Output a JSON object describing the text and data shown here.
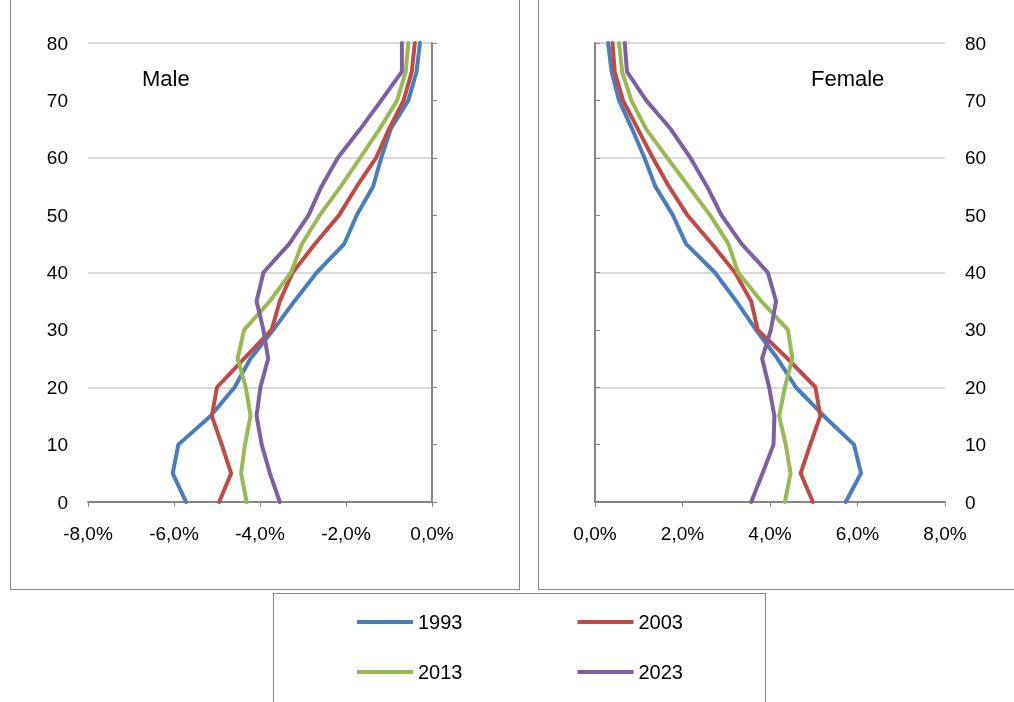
{
  "chart_data": [
    {
      "type": "line",
      "title": "Male",
      "xlim": [
        -8,
        0
      ],
      "xticks": [
        {
          "value": -8,
          "label": "-8,0%"
        },
        {
          "value": -6,
          "label": "-6,0%"
        },
        {
          "value": -4,
          "label": "-4,0%"
        },
        {
          "value": -2,
          "label": "-2,0%"
        },
        {
          "value": 0,
          "label": "0,0%"
        }
      ],
      "ylim": [
        0,
        80
      ],
      "yticks": [
        0,
        10,
        20,
        30,
        40,
        50,
        60,
        70,
        80
      ],
      "grid": "y",
      "marker": "none",
      "line_style": "solid",
      "legend": "bottom",
      "series": [
        {
          "name": "1993",
          "color": "#4a7ebb",
          "x": [
            -5.72,
            -6.03,
            -5.9,
            -5.15,
            -4.59,
            -4.22,
            -3.69,
            -3.2,
            -2.68,
            -2.04,
            -1.75,
            -1.37,
            -1.18,
            -0.96,
            -0.55,
            -0.36,
            -0.28
          ],
          "values": [
            0,
            5,
            10,
            15,
            20,
            25,
            30,
            35,
            40,
            45,
            50,
            55,
            60,
            65,
            70,
            75,
            80
          ]
        },
        {
          "name": "2003",
          "color": "#be4b48",
          "x": [
            -4.95,
            -4.67,
            -4.89,
            -5.12,
            -5.0,
            -4.37,
            -3.73,
            -3.54,
            -3.24,
            -2.72,
            -2.16,
            -1.75,
            -1.3,
            -1.0,
            -0.66,
            -0.47,
            -0.4
          ],
          "values": [
            0,
            5,
            10,
            15,
            20,
            25,
            30,
            35,
            40,
            45,
            50,
            55,
            60,
            65,
            70,
            75,
            80
          ]
        },
        {
          "name": "2013",
          "color": "#98b954",
          "x": [
            -4.31,
            -4.44,
            -4.35,
            -4.22,
            -4.33,
            -4.52,
            -4.37,
            -3.77,
            -3.28,
            -3.02,
            -2.61,
            -2.12,
            -1.67,
            -1.22,
            -0.81,
            -0.61,
            -0.55
          ],
          "values": [
            0,
            5,
            10,
            15,
            20,
            25,
            30,
            35,
            40,
            45,
            50,
            55,
            60,
            65,
            70,
            75,
            80
          ]
        },
        {
          "name": "2023",
          "color": "#7d60a0",
          "x": [
            -3.54,
            -3.77,
            -3.96,
            -4.08,
            -3.99,
            -3.81,
            -3.92,
            -4.08,
            -3.92,
            -3.32,
            -2.87,
            -2.57,
            -2.19,
            -1.67,
            -1.18,
            -0.7,
            -0.7
          ],
          "values": [
            0,
            5,
            10,
            15,
            20,
            25,
            30,
            35,
            40,
            45,
            50,
            55,
            60,
            65,
            70,
            75,
            80
          ]
        }
      ]
    },
    {
      "type": "line",
      "title": "Female",
      "xlim": [
        0,
        8
      ],
      "xticks": [
        {
          "value": 0,
          "label": "0,0%"
        },
        {
          "value": 2,
          "label": "2,0%"
        },
        {
          "value": 4,
          "label": "4,0%"
        },
        {
          "value": 6,
          "label": "6,0%"
        },
        {
          "value": 8,
          "label": "8,0%"
        }
      ],
      "ylim": [
        0,
        80
      ],
      "yticks": [
        0,
        10,
        20,
        30,
        40,
        50,
        60,
        70,
        80
      ],
      "grid": "y",
      "marker": "none",
      "line_style": "solid",
      "series": [
        {
          "color": "#4a7ebb",
          "x": [
            5.73,
            6.08,
            5.92,
            5.23,
            4.59,
            4.17,
            3.68,
            3.23,
            2.74,
            2.08,
            1.78,
            1.38,
            1.13,
            0.85,
            0.55,
            0.38,
            0.3
          ],
          "values": [
            0,
            5,
            10,
            15,
            20,
            25,
            30,
            35,
            40,
            45,
            50,
            55,
            60,
            65,
            70,
            75,
            80
          ]
        },
        {
          "color": "#be4b48",
          "x": [
            4.98,
            4.7,
            4.92,
            5.15,
            5.04,
            4.4,
            3.72,
            3.57,
            3.2,
            2.67,
            2.11,
            1.69,
            1.32,
            0.98,
            0.64,
            0.45,
            0.4
          ],
          "values": [
            0,
            5,
            10,
            15,
            20,
            25,
            30,
            35,
            40,
            45,
            50,
            55,
            60,
            65,
            70,
            75,
            80
          ]
        },
        {
          "color": "#98b954",
          "x": [
            4.34,
            4.47,
            4.36,
            4.21,
            4.34,
            4.51,
            4.41,
            3.8,
            3.27,
            3.05,
            2.63,
            2.14,
            1.65,
            1.17,
            0.83,
            0.62,
            0.55
          ],
          "values": [
            0,
            5,
            10,
            15,
            20,
            25,
            30,
            35,
            40,
            45,
            50,
            55,
            60,
            65,
            70,
            75,
            80
          ]
        },
        {
          "color": "#7d60a0",
          "x": [
            3.57,
            3.83,
            4.08,
            4.1,
            3.98,
            3.82,
            4.02,
            4.14,
            3.95,
            3.35,
            2.89,
            2.56,
            2.18,
            1.73,
            1.17,
            0.73,
            0.68
          ],
          "values": [
            0,
            5,
            10,
            15,
            20,
            25,
            30,
            35,
            40,
            45,
            50,
            55,
            60,
            65,
            70,
            75,
            80
          ]
        }
      ]
    }
  ]
}
